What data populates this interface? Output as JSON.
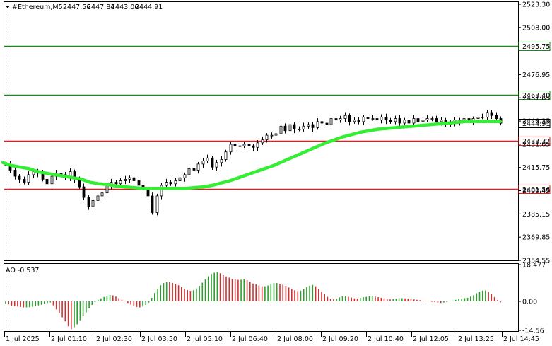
{
  "header": {
    "symbol": "#Ethereum,M5",
    "open": "2447.56",
    "high": "2447.84",
    "low": "2443.06",
    "close": "2444.91",
    "dropdown_icon": "triangle-down-icon"
  },
  "price_axis": {
    "ticks": [
      "2523.30",
      "2508.00",
      "2476.95",
      "2461.65",
      "2446.35",
      "2431.05",
      "2415.75",
      "2400.45",
      "2385.15",
      "2369.85",
      "2354.55"
    ],
    "min": 2354.55,
    "max": 2523.3
  },
  "levels": [
    {
      "price": 2495.75,
      "label": "2495.75",
      "color": "#1a8a1a"
    },
    {
      "price": 2463.4,
      "label": "2463.40",
      "color": "#1a8a1a"
    },
    {
      "price": 2433.32,
      "label": "2433.32",
      "color": "#e02020"
    },
    {
      "price": 2401.56,
      "label": "2401.56",
      "color": "#e02020"
    }
  ],
  "current_price": {
    "price": 2444.91,
    "label": "2444.91"
  },
  "time_axis": [
    "1 Jul 2025",
    "2 Jul 01:10",
    "2 Jul 02:30",
    "2 Jul 03:50",
    "2 Jul 05:10",
    "2 Jul 06:40",
    "2 Jul 08:00",
    "2 Jul 09:20",
    "2 Jul 10:40",
    "2 Jul 12:05",
    "2 Jul 13:25",
    "2 Jul 14:45"
  ],
  "indicator": {
    "label": "AO -0.537",
    "ticks": [
      "18.477",
      "0.00",
      "-14.56"
    ],
    "min": -14.56,
    "max": 18.477
  },
  "colors": {
    "ma_line": "#33ee33",
    "ao_up": "#2e9e2e",
    "ao_down": "#d03030",
    "grid": "#c8c8c8",
    "candle": "#000000"
  },
  "chart_data": [
    {
      "type": "candlestick",
      "title": "#Ethereum,M5",
      "closes": [
        2418,
        2414,
        2410,
        2408,
        2406,
        2411,
        2413,
        2412,
        2408,
        2405,
        2410,
        2412,
        2411,
        2409,
        2413,
        2408,
        2403,
        2396,
        2390,
        2394,
        2397,
        2399,
        2404,
        2406,
        2405,
        2407,
        2408,
        2409,
        2407,
        2404,
        2401,
        2397,
        2386,
        2397,
        2404,
        2406,
        2405,
        2407,
        2409,
        2411,
        2415,
        2414,
        2418,
        2420,
        2422,
        2416,
        2419,
        2421,
        2426,
        2431,
        2430,
        2430,
        2431,
        2430,
        2429,
        2432,
        2434,
        2437,
        2437,
        2438,
        2443,
        2440,
        2444,
        2441,
        2441,
        2443,
        2444,
        2442,
        2446,
        2445,
        2444,
        2448,
        2447,
        2448,
        2450,
        2446,
        2447,
        2446,
        2449,
        2448,
        2448,
        2447,
        2449,
        2447,
        2446,
        2448,
        2445,
        2447,
        2445,
        2448,
        2446,
        2447,
        2448,
        2448,
        2446,
        2447,
        2444,
        2445,
        2447,
        2446,
        2448,
        2446,
        2448,
        2449,
        2449,
        2452,
        2450,
        2448,
        2444.91
      ],
      "moving_average": [
        2419,
        2417,
        2416,
        2415,
        2413,
        2412,
        2411,
        2410,
        2409,
        2408,
        2406,
        2405,
        2404.5,
        2403.5,
        2403,
        2402.5,
        2402,
        2402,
        2402,
        2402,
        2402,
        2402,
        2402.5,
        2403,
        2404,
        2405.5,
        2407,
        2409,
        2411,
        2413,
        2415,
        2417,
        2419.5,
        2422,
        2424.5,
        2427,
        2429.5,
        2432,
        2434,
        2436,
        2437.5,
        2439,
        2440,
        2441,
        2441.5,
        2442,
        2442.5,
        2443,
        2443.5,
        2444,
        2444.5,
        2445,
        2445.5,
        2446,
        2446,
        2446,
        2446,
        2446
      ],
      "ylim": [
        2354.55,
        2523.3
      ]
    },
    {
      "type": "bar",
      "title": "AO -0.537",
      "values": [
        -1.2,
        -1.5,
        -2.1,
        -2.4,
        -2.6,
        -2.8,
        -3.0,
        -3.0,
        -2.9,
        -2.7,
        -2.4,
        -2.0,
        -1.7,
        -1.2,
        -0.8,
        -0.5,
        -2.0,
        -4.0,
        -6.0,
        -8.0,
        -10.0,
        -12.5,
        -14.0,
        -13.0,
        -11.5,
        -9.5,
        -7.5,
        -5.5,
        -3.5,
        -1.8,
        -0.4,
        0.8,
        1.5,
        2.2,
        2.8,
        3.2,
        3.0,
        2.4,
        1.6,
        0.8,
        0.2,
        -0.8,
        -1.6,
        -2.4,
        -2.8,
        -3.0,
        -2.6,
        -1.8,
        -0.6,
        1.8,
        4.2,
        6.3,
        8.1,
        9.2,
        9.8,
        9.6,
        9.3,
        8.8,
        8.1,
        7.2,
        6.4,
        5.7,
        5.3,
        5.6,
        6.5,
        7.8,
        9.4,
        11.0,
        12.6,
        13.8,
        14.4,
        14.6,
        14.1,
        13.4,
        12.5,
        11.9,
        11.3,
        11.0,
        10.8,
        10.9,
        11.1,
        10.6,
        9.8,
        9.0,
        8.5,
        8.0,
        7.6,
        7.6,
        8.0,
        8.7,
        9.2,
        9.2,
        8.9,
        8.4,
        7.8,
        7.0,
        6.2,
        5.6,
        5.2,
        5.4,
        6.3,
        7.2,
        7.9,
        8.3,
        7.6,
        6.4,
        5.0,
        3.6,
        2.3,
        1.3,
        1.0,
        1.4,
        2.0,
        2.5,
        2.6,
        2.3,
        1.9,
        1.5,
        1.4,
        1.7,
        2.1,
        2.3,
        2.5,
        2.5,
        2.4,
        2.1,
        1.8,
        1.5,
        1.2,
        1.0,
        1.2,
        1.4,
        1.6,
        1.6,
        1.5,
        1.4,
        1.2,
        1.0,
        0.8,
        0.6,
        0.4,
        0.2,
        0.0,
        -0.2,
        -0.4,
        -0.6,
        -0.8,
        -0.6,
        -0.3,
        0.0,
        0.4,
        0.8,
        1.2,
        1.4,
        1.6,
        1.8,
        2.4,
        3.1,
        4.1,
        4.9,
        5.4,
        5.5,
        4.8,
        3.6,
        2.2,
        0.6,
        -0.537
      ],
      "ylim": [
        -14.56,
        18.477
      ]
    }
  ]
}
